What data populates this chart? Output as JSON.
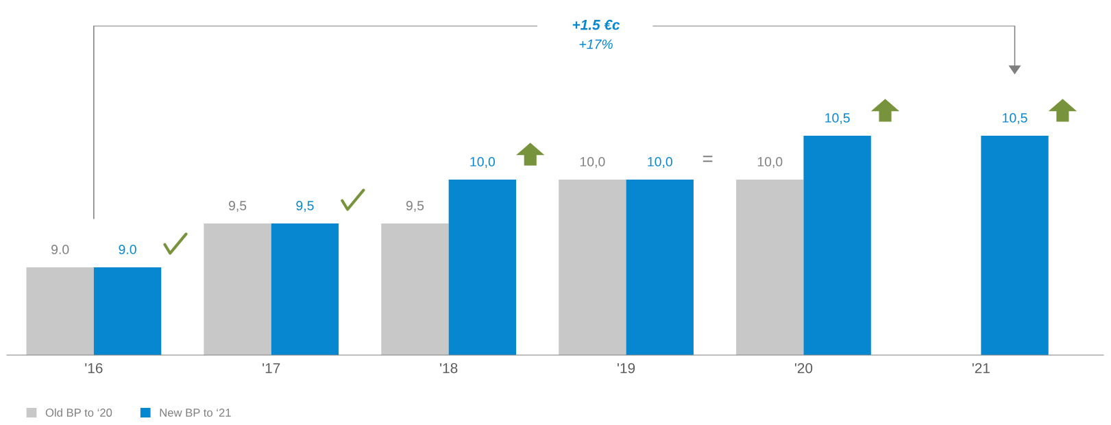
{
  "chart_data": {
    "type": "bar",
    "categories": [
      "'16",
      "'17",
      "'18",
      "'19",
      "'20",
      "'21"
    ],
    "series": [
      {
        "name": "Old BP to ‘20",
        "color": "#c8c8c8",
        "values": [
          9.0,
          9.5,
          9.5,
          10.0,
          10.0,
          null
        ],
        "value_labels": [
          "9.0",
          "9,5",
          "9,5",
          "10,0",
          "10,0",
          null
        ]
      },
      {
        "name": "New BP to ‘21",
        "color": "#0787d0",
        "values": [
          9.0,
          9.5,
          10.0,
          10.0,
          10.5,
          10.5
        ],
        "value_labels": [
          "9.0",
          "9,5",
          "10,0",
          "10,0",
          "10,5",
          "10,5"
        ]
      }
    ],
    "ylim": [
      8.0,
      10.5
    ],
    "tick_labels": "x",
    "grid": false,
    "legend": "bottom left",
    "annotations": [
      "+1.5 €c",
      "+17%",
      "="
    ]
  }
}
